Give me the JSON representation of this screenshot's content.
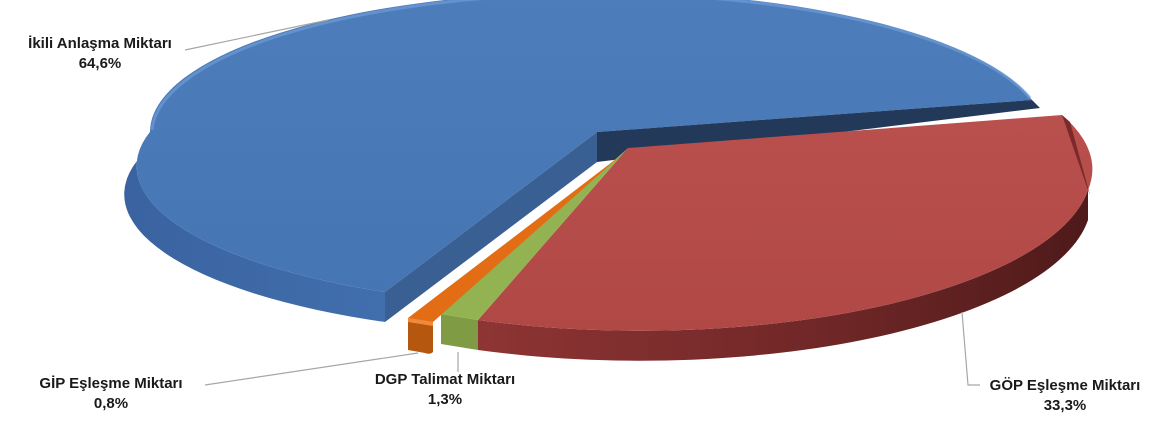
{
  "chart_data": {
    "type": "pie",
    "style": "3d-exploded",
    "slices": [
      {
        "label": "İkili Anlaşma Miktarı",
        "value": 64.6,
        "value_label": "64,6%",
        "color": "#4a7ab7",
        "exploded": true
      },
      {
        "label": "GÖP Eşleşme Miktarı",
        "value": 33.3,
        "value_label": "33,3%",
        "color": "#b64c4a",
        "exploded": false
      },
      {
        "label": "DGP Talimat Miktarı",
        "value": 1.3,
        "value_label": "1,3%",
        "color": "#93b353",
        "exploded": false
      },
      {
        "label": "GİP Eşleşme Miktarı",
        "value": 0.8,
        "value_label": "0,8%",
        "color": "#e26d14",
        "exploded": true
      }
    ]
  }
}
